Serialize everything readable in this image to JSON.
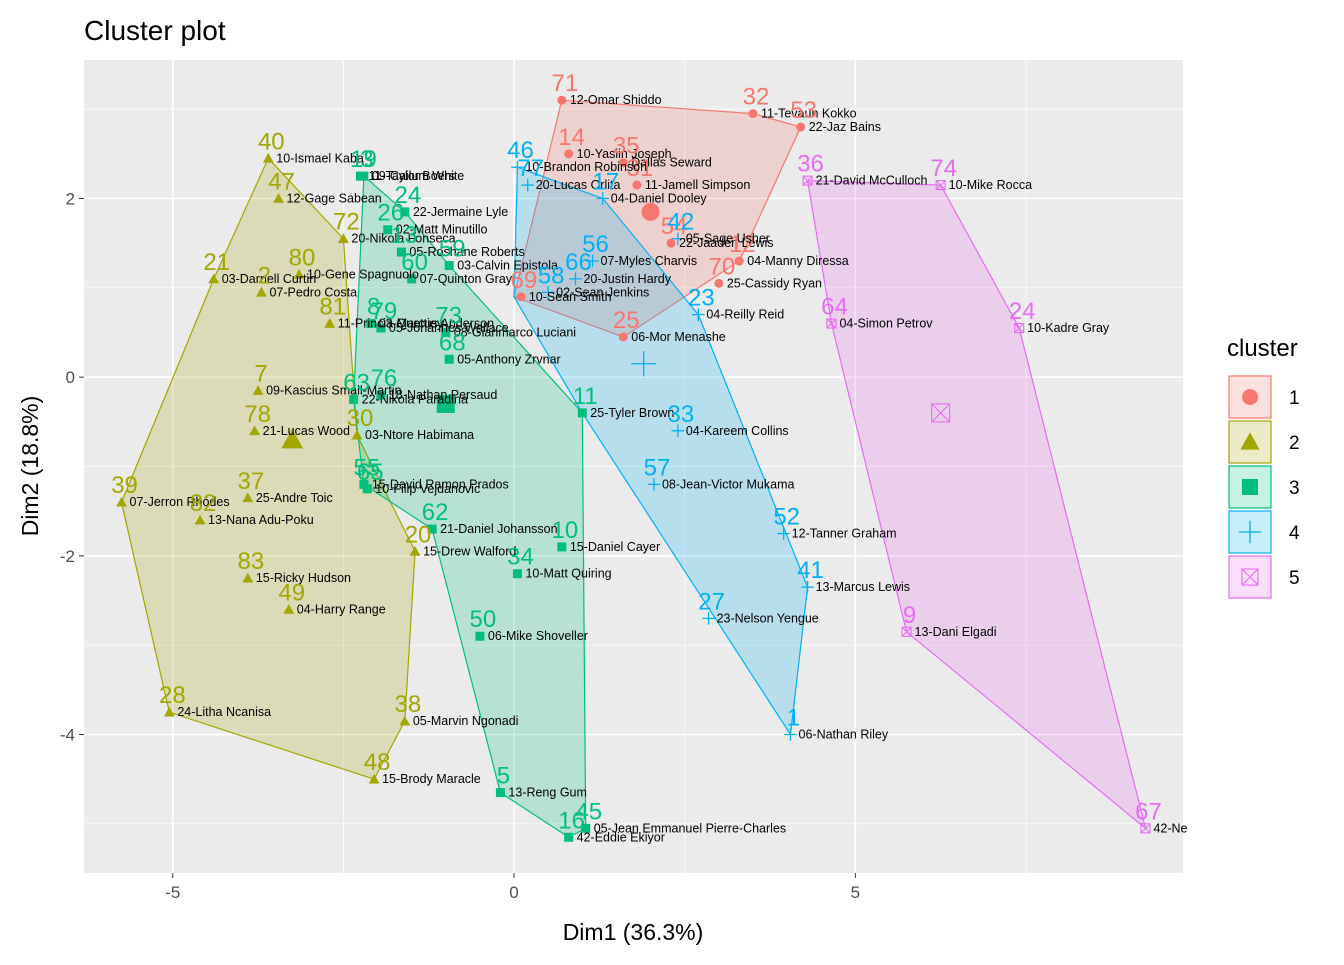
{
  "chart_data": {
    "type": "scatter",
    "title": "Cluster plot",
    "xlabel": "Dim1 (36.3%)",
    "ylabel": "Dim2 (18.8%)",
    "xlim": [
      -6.3,
      9.8
    ],
    "ylim": [
      -5.55,
      3.55
    ],
    "x_ticks": [
      -5,
      0,
      5
    ],
    "y_ticks": [
      -4,
      -2,
      0,
      2
    ],
    "grid": true,
    "legend_title": "cluster",
    "legend_position": "right",
    "series": [
      {
        "name": "1",
        "color": "#F8766D",
        "shape": "circle",
        "points": [
          {
            "id": "71",
            "label": "12-Omar Shiddo",
            "x": 0.7,
            "y": 3.1
          },
          {
            "id": "32",
            "label": "11-Tevaun Kokko",
            "x": 3.5,
            "y": 2.95
          },
          {
            "id": "53",
            "label": "22-Jaz Bains",
            "x": 4.2,
            "y": 2.8
          },
          {
            "id": "14",
            "label": "10-Yasiin Joseph",
            "x": 0.8,
            "y": 2.5
          },
          {
            "id": "35",
            "label": "Dallas Seward",
            "x": 1.6,
            "y": 2.4
          },
          {
            "id": "31",
            "label": "11-Jamell Simpson",
            "x": 1.8,
            "y": 2.15
          },
          {
            "id": "54",
            "label": "22-Jaaden Lewis",
            "x": 2.3,
            "y": 1.5
          },
          {
            "id": "12",
            "label": "04-Manny Diressa",
            "x": 3.3,
            "y": 1.3
          },
          {
            "id": "70",
            "label": "25-Cassidy Ryan",
            "x": 3.0,
            "y": 1.05
          },
          {
            "id": "69",
            "label": "10-Sean Smith",
            "x": 0.1,
            "y": 0.9
          },
          {
            "id": "25",
            "label": "06-Mor Menashe",
            "x": 1.6,
            "y": 0.45
          }
        ],
        "hull": [
          [
            0.7,
            3.1
          ],
          [
            3.5,
            2.95
          ],
          [
            4.2,
            2.8
          ],
          [
            3.3,
            1.3
          ],
          [
            1.6,
            0.45
          ],
          [
            0.0,
            0.9
          ]
        ],
        "center": [
          2.0,
          1.85
        ]
      },
      {
        "name": "2",
        "color": "#A3A500",
        "shape": "triangle",
        "points": [
          {
            "id": "40",
            "label": "10-Ismael Kaba",
            "x": -3.6,
            "y": 2.45
          },
          {
            "id": "47",
            "label": "12-Gage Sabean",
            "x": -3.45,
            "y": 2.0
          },
          {
            "id": "72",
            "label": "20-Nikola Fonseca",
            "x": -2.5,
            "y": 1.55
          },
          {
            "id": "21",
            "label": "03-Darnell Curtin",
            "x": -4.4,
            "y": 1.1
          },
          {
            "id": "2",
            "label": "07-Pedro Costa",
            "x": -3.7,
            "y": 0.95
          },
          {
            "id": "80",
            "label": "10-Gene Spagnuolo",
            "x": -3.15,
            "y": 1.15
          },
          {
            "id": "81",
            "label": "11-Princia Quettiey",
            "x": -2.7,
            "y": 0.6
          },
          {
            "id": "7",
            "label": "09-Kascius Small-Martin",
            "x": -3.75,
            "y": -0.15
          },
          {
            "id": "78",
            "label": "21-Lucas Wood",
            "x": -3.8,
            "y": -0.6
          },
          {
            "id": "30",
            "label": "03-Ntore Habimana",
            "x": -2.3,
            "y": -0.65
          },
          {
            "id": "39",
            "label": "07-Jerron Rhodes",
            "x": -5.75,
            "y": -1.4
          },
          {
            "id": "82",
            "label": "13-Nana Adu-Poku",
            "x": -4.6,
            "y": -1.6
          },
          {
            "id": "37",
            "label": "25-Andre Toic",
            "x": -3.9,
            "y": -1.35
          },
          {
            "id": "83",
            "label": "15-Ricky Hudson",
            "x": -3.9,
            "y": -2.25
          },
          {
            "id": "49",
            "label": "04-Harry Range",
            "x": -3.3,
            "y": -2.6
          },
          {
            "id": "28",
            "label": "24-Litha Ncanisa",
            "x": -5.05,
            "y": -3.75
          },
          {
            "id": "38",
            "label": "05-Marvin Ngonadi",
            "x": -1.6,
            "y": -3.85
          },
          {
            "id": "48",
            "label": "15-Brody Maracle",
            "x": -2.05,
            "y": -4.5
          },
          {
            "id": "20",
            "label": "15-Drew Walford",
            "x": -1.45,
            "y": -1.95
          }
        ],
        "hull": [
          [
            -3.6,
            2.45
          ],
          [
            -2.5,
            1.55
          ],
          [
            -2.3,
            -0.65
          ],
          [
            -1.45,
            -1.95
          ],
          [
            -1.6,
            -3.85
          ],
          [
            -2.05,
            -4.5
          ],
          [
            -5.05,
            -3.75
          ],
          [
            -5.75,
            -1.4
          ],
          [
            -4.4,
            1.1
          ]
        ],
        "center": [
          -3.25,
          -0.7
        ]
      },
      {
        "name": "3",
        "color": "#00BF7D",
        "shape": "square",
        "points": [
          {
            "id": "3",
            "label": "09-Cailum White",
            "x": -2.2,
            "y": 2.25
          },
          {
            "id": "19",
            "label": "11-Taylor Boers",
            "x": -2.25,
            "y": 2.25
          },
          {
            "id": "24",
            "label": "22-Jermaine Lyle",
            "x": -1.6,
            "y": 1.85
          },
          {
            "id": "26",
            "label": "02-Matt Minutillo",
            "x": -1.85,
            "y": 1.65
          },
          {
            "id": "13",
            "label": "05-Roshane Roberts",
            "x": -1.65,
            "y": 1.4
          },
          {
            "id": "59",
            "label": "03-Calvin Epistola",
            "x": -0.95,
            "y": 1.25
          },
          {
            "id": "60",
            "label": "07-Quinton Gray",
            "x": -1.5,
            "y": 1.1
          },
          {
            "id": "8",
            "label": "03-Marcus Anderson",
            "x": -2.1,
            "y": 0.6
          },
          {
            "id": "79",
            "label": "05-Johannes Wallace",
            "x": -1.95,
            "y": 0.55
          },
          {
            "id": "73",
            "label": "08-Gianmarco Luciani",
            "x": -1.0,
            "y": 0.5
          },
          {
            "id": "68",
            "label": "05-Anthony Zrvnar",
            "x": -0.95,
            "y": 0.2
          },
          {
            "id": "63",
            "label": "22-Nikola Paradina",
            "x": -2.35,
            "y": -0.25
          },
          {
            "id": "76",
            "label": "18-Nathan Persaud",
            "x": -1.95,
            "y": -0.2
          },
          {
            "id": "11",
            "label": "25-Tyler Brown",
            "x": 1.0,
            "y": -0.4
          },
          {
            "id": "55",
            "label": "15-David Ramon Prados",
            "x": -2.2,
            "y": -1.2
          },
          {
            "id": "65",
            "label": "10-Filip Vejdanovic",
            "x": -2.15,
            "y": -1.25
          },
          {
            "id": "62",
            "label": "21-Daniel Johansson",
            "x": -1.2,
            "y": -1.7
          },
          {
            "id": "10",
            "label": "15-Daniel Cayer",
            "x": 0.7,
            "y": -1.9
          },
          {
            "id": "34",
            "label": "10-Matt Quiring",
            "x": 0.05,
            "y": -2.2
          },
          {
            "id": "50",
            "label": "06-Mike Shoveller",
            "x": -0.5,
            "y": -2.9
          },
          {
            "id": "5",
            "label": "13-Reng Gum",
            "x": -0.2,
            "y": -4.65
          },
          {
            "id": "16",
            "label": "42-Eddie Ekiyor",
            "x": 0.8,
            "y": -5.15
          },
          {
            "id": "45",
            "label": "05-Jean Emmanuel Pierre-Charles",
            "x": 1.05,
            "y": -5.05
          }
        ],
        "hull": [
          [
            -2.2,
            2.25
          ],
          [
            -1.6,
            1.85
          ],
          [
            -0.95,
            1.25
          ],
          [
            1.0,
            -0.4
          ],
          [
            1.05,
            -5.05
          ],
          [
            0.8,
            -5.15
          ],
          [
            -0.2,
            -4.65
          ],
          [
            -1.2,
            -1.7
          ],
          [
            -2.2,
            -1.2
          ],
          [
            -2.35,
            -0.25
          ]
        ],
        "center": [
          -1.0,
          -0.3
        ]
      },
      {
        "name": "4",
        "color": "#00B0F6",
        "shape": "plus",
        "points": [
          {
            "id": "46",
            "label": "10-Brandon Robinson",
            "x": 0.05,
            "y": 2.35
          },
          {
            "id": "77",
            "label": "20-Lucas Orlita",
            "x": 0.2,
            "y": 2.15
          },
          {
            "id": "17",
            "label": "04-Daniel Dooley",
            "x": 1.3,
            "y": 2.0
          },
          {
            "id": "42",
            "label": "05-Sage Usher",
            "x": 2.4,
            "y": 1.55
          },
          {
            "id": "56",
            "label": "07-Myles Charvis",
            "x": 1.15,
            "y": 1.3
          },
          {
            "id": "66",
            "label": "20-Justin Hardy",
            "x": 0.9,
            "y": 1.1
          },
          {
            "id": "58",
            "label": "02-Sean Jenkins",
            "x": 0.5,
            "y": 0.95
          },
          {
            "id": "23",
            "label": "04-Reilly Reid",
            "x": 2.7,
            "y": 0.7
          },
          {
            "id": "33",
            "label": "04-Kareem Collins",
            "x": 2.4,
            "y": -0.6
          },
          {
            "id": "57",
            "label": "08-Jean-Victor Mukama",
            "x": 2.05,
            "y": -1.2
          },
          {
            "id": "52",
            "label": "12-Tanner Graham",
            "x": 3.95,
            "y": -1.75
          },
          {
            "id": "41",
            "label": "13-Marcus Lewis",
            "x": 4.3,
            "y": -2.35
          },
          {
            "id": "27",
            "label": "23-Nelson Yengue",
            "x": 2.85,
            "y": -2.7
          },
          {
            "id": "1",
            "label": "06-Nathan Riley",
            "x": 4.05,
            "y": -4.0
          }
        ],
        "hull": [
          [
            0.05,
            2.35
          ],
          [
            1.3,
            2.0
          ],
          [
            2.7,
            0.7
          ],
          [
            4.3,
            -2.35
          ],
          [
            4.05,
            -4.0
          ],
          [
            1.0,
            -0.4
          ],
          [
            0.0,
            0.9
          ]
        ],
        "center": [
          1.9,
          0.15
        ]
      },
      {
        "name": "5",
        "color": "#E76BF3",
        "shape": "boxx",
        "points": [
          {
            "id": "36",
            "label": "21-David McCulloch",
            "x": 4.3,
            "y": 2.2
          },
          {
            "id": "74",
            "label": "10-Mike Rocca",
            "x": 6.25,
            "y": 2.15
          },
          {
            "id": "64",
            "label": "04-Simon Petrov",
            "x": 4.65,
            "y": 0.6
          },
          {
            "id": "24",
            "label": "10-Kadre Gray",
            "x": 7.4,
            "y": 0.55
          },
          {
            "id": "9",
            "label": "13-Dani Elgadi",
            "x": 5.75,
            "y": -2.85
          },
          {
            "id": "67",
            "label": "42-Ne",
            "x": 9.25,
            "y": -5.05
          }
        ],
        "hull": [
          [
            4.3,
            2.2
          ],
          [
            6.25,
            2.15
          ],
          [
            7.4,
            0.55
          ],
          [
            9.25,
            -5.05
          ],
          [
            5.75,
            -2.85
          ],
          [
            4.65,
            0.6
          ]
        ],
        "center": [
          6.25,
          -0.4
        ]
      }
    ]
  }
}
